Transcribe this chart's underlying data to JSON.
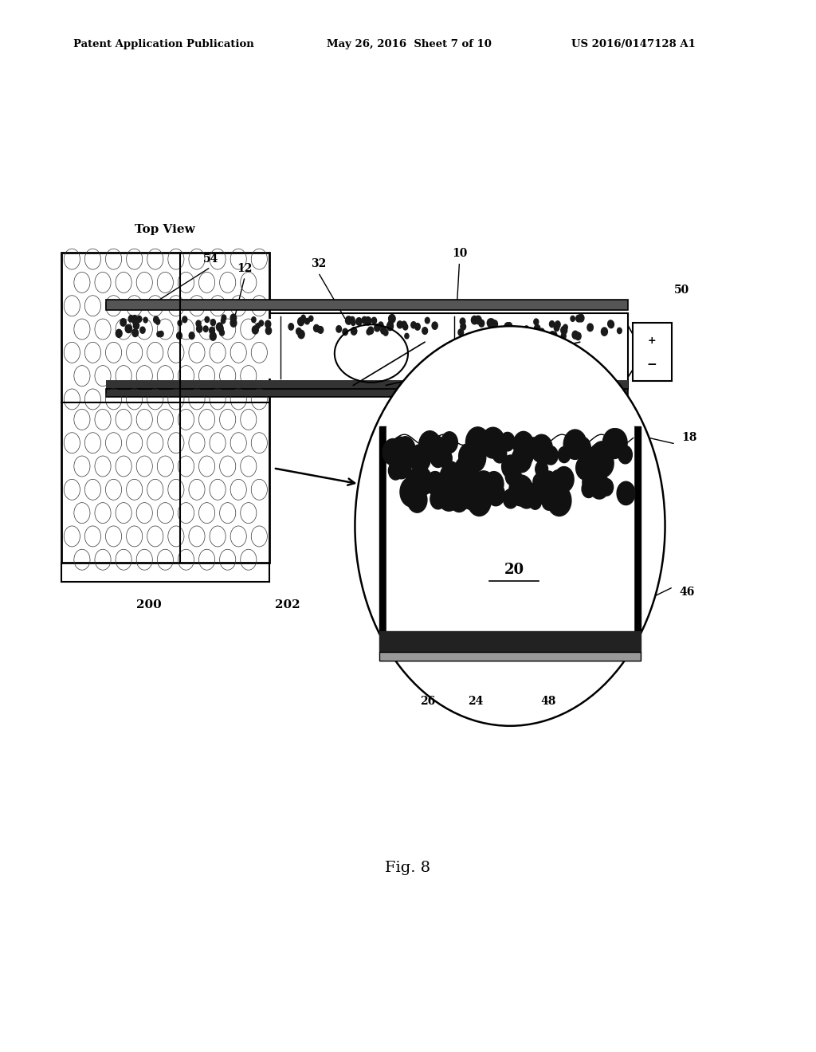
{
  "bg_color": "#ffffff",
  "header_left": "Patent Application Publication",
  "header_mid": "May 26, 2016  Sheet 7 of 10",
  "header_right": "US 2016/0147128 A1",
  "fig_caption": "Fig. 8",
  "top_view_label": "Top View"
}
